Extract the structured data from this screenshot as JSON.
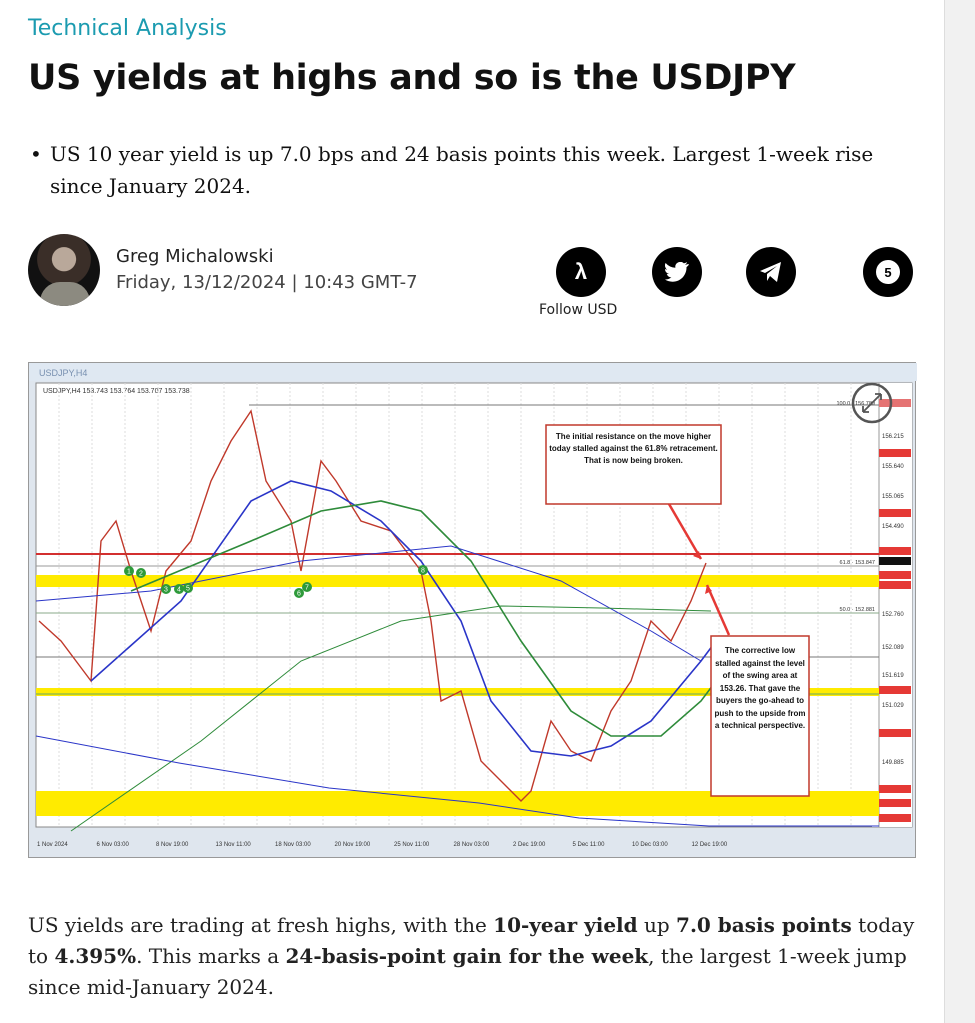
{
  "article": {
    "category": "Technical Analysis",
    "title": "US yields at highs and so is the USDJPY",
    "bullets": [
      "US 10 year yield is up 7.0 bps and 24 basis points this week. Largest 1-week rise since January 2024."
    ],
    "author": "Greg Michalowski",
    "date": "Friday, 13/12/2024 | 10:43 GMT-7",
    "follow_label": "Follow USD",
    "comments_count": "5",
    "body": [
      {
        "t": "US yields are trading at fresh highs, with the ",
        "b": false
      },
      {
        "t": "10-year yield",
        "b": true
      },
      {
        "t": " up ",
        "b": false
      },
      {
        "t": "7.0 basis points",
        "b": true
      },
      {
        "t": " today to ",
        "b": false
      },
      {
        "t": "4.395%",
        "b": true
      },
      {
        "t": ". This marks a ",
        "b": false
      },
      {
        "t": "24-basis-point gain for the week",
        "b": true
      },
      {
        "t": ", the largest 1-week jump since mid-January 2024.",
        "b": false
      }
    ]
  },
  "social": [
    {
      "icon": "lambda-icon",
      "glyph": "λ"
    },
    {
      "icon": "twitter-icon",
      "glyph": "🐦"
    },
    {
      "icon": "telegram-icon",
      "glyph": "➤"
    },
    {
      "icon": "comments-icon",
      "glyph": "5"
    }
  ],
  "chart": {
    "window_title": "USDJPY,H4",
    "symbol_line": "USDJPY,H4  153.743 153.764 153.707 153.738",
    "annotation_top": "The initial resistance on the move higher today stalled against the 61.8% retracement. That is now being broken.",
    "annotation_bottom": "The corrective low stalled against the level of the swing area at 153.26. That gave the buyers the go-ahead to push to the upside from a technical perspective.",
    "x_labels": [
      "1 Nov 2024",
      "6 Nov 03:00",
      "8 Nov 19:00",
      "13 Nov 11:00",
      "18 Nov 03:00",
      "20 Nov 19:00",
      "25 Nov 11:00",
      "28 Nov 03:00",
      "2 Dec 19:00",
      "5 Dec 11:00",
      "10 Dec 03:00",
      "12 Dec 19:00"
    ],
    "y_labels": [
      "156.789",
      "156.215",
      "155.640",
      "155.065",
      "154.490",
      "152.760",
      "152.089",
      "151.619",
      "151.029",
      "149.885"
    ],
    "fib_labels": [
      "100.0 · 156.789",
      "61.8 · 153.847",
      "50.0 · 152.881"
    ],
    "swing_markers": [
      "1",
      "2",
      "3",
      "4",
      "5",
      "6",
      "7",
      "8"
    ],
    "colors": {
      "price_line": "#c0392b",
      "resistance": "#d32f2f",
      "zone": "#ffeb00",
      "ma_blue": "#2a35c8",
      "ma_green": "#2e8b3a"
    }
  }
}
